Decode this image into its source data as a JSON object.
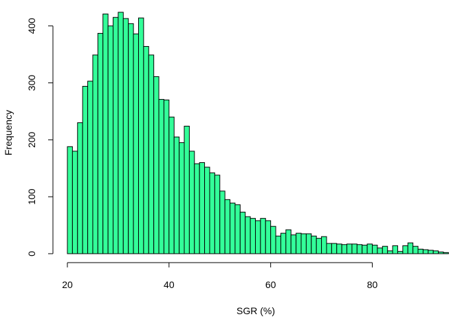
{
  "chart_data": {
    "type": "bar",
    "title": "",
    "xlabel": "SGR (%)",
    "ylabel": "Frequency",
    "bar_color": "#33ff99",
    "edge_color": "#000000",
    "bin_start": 20,
    "bin_width": 1,
    "xlim": [
      20,
      94
    ],
    "ylim": [
      0,
      425
    ],
    "x_ticks": [
      20,
      40,
      60,
      80
    ],
    "y_ticks": [
      0,
      100,
      200,
      300,
      400
    ],
    "values": [
      188,
      180,
      230,
      294,
      303,
      349,
      387,
      421,
      400,
      415,
      424,
      413,
      404,
      386,
      414,
      364,
      349,
      311,
      271,
      270,
      240,
      205,
      195,
      224,
      180,
      158,
      160,
      152,
      142,
      138,
      110,
      95,
      89,
      86,
      73,
      65,
      62,
      58,
      62,
      58,
      48,
      31,
      36,
      42,
      33,
      36,
      35,
      35,
      31,
      27,
      30,
      18,
      18,
      17,
      16,
      17,
      17,
      16,
      15,
      17,
      15,
      10,
      13,
      5,
      14,
      4,
      14,
      19,
      13,
      8,
      7,
      6,
      5,
      3,
      2
    ]
  }
}
